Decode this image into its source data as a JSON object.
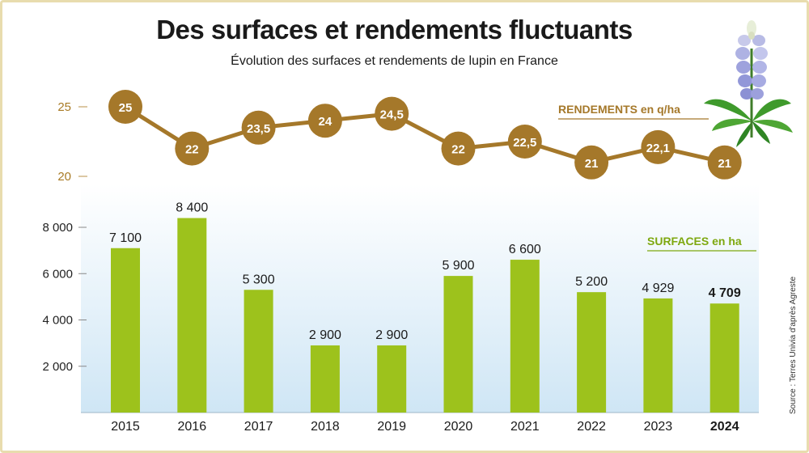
{
  "title": "Des surfaces et rendements fluctuants",
  "subtitle": "Évolution des surfaces et rendements de lupin en France",
  "source": "Source : Terres Univia d'après Agreste",
  "colors": {
    "bar": "#9dc21c",
    "line": "#a5782a",
    "rendements_label": "#a5782a",
    "surfaces_label": "#7ea80f",
    "background_gradient_top": "#ffffff",
    "background_gradient_bottom": "#cfe6f5"
  },
  "chart_data": [
    {
      "type": "line",
      "series": [
        {
          "name": "RENDEMENTS en q/ha",
          "values": [
            25,
            22,
            23.5,
            24,
            24.5,
            22,
            22.5,
            21,
            22.1,
            21
          ],
          "labels": [
            "25",
            "22",
            "23,5",
            "24",
            "24,5",
            "22",
            "22,5",
            "21",
            "22,1",
            "21"
          ]
        }
      ],
      "categories": [
        "2015",
        "2016",
        "2017",
        "2018",
        "2019",
        "2020",
        "2021",
        "2022",
        "2023",
        "2024"
      ],
      "yticks": [
        "20",
        "25"
      ],
      "ylim": [
        20,
        25
      ]
    },
    {
      "type": "bar",
      "series": [
        {
          "name": "SURFACES en ha",
          "values": [
            7100,
            8400,
            5300,
            2900,
            2900,
            5900,
            6600,
            5200,
            4929,
            4709
          ],
          "labels": [
            "7 100",
            "8 400",
            "5 300",
            "2 900",
            "2 900",
            "5 900",
            "6 600",
            "5 200",
            "4 929",
            "4 709"
          ]
        }
      ],
      "categories": [
        "2015",
        "2016",
        "2017",
        "2018",
        "2019",
        "2020",
        "2021",
        "2022",
        "2023",
        "2024"
      ],
      "yticks": [
        "2 000",
        "4 000",
        "6 000",
        "8 000"
      ],
      "ylim": [
        0,
        8000
      ],
      "highlighted_category": "2024"
    }
  ]
}
